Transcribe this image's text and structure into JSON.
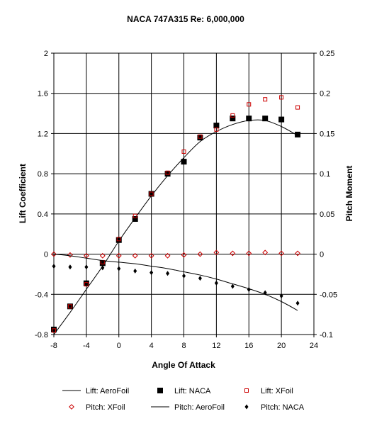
{
  "chart_data": {
    "type": "line",
    "title": "NACA 747A315 Re: 6,000,000",
    "xlabel": "Angle Of Attack",
    "ylabel": "Lift Coefficient",
    "y2label": "Pitch Moment",
    "xlim": [
      -8,
      24
    ],
    "ylim": [
      -0.8,
      2
    ],
    "y2lim": [
      -0.1,
      0.25
    ],
    "xticks": [
      "-8",
      "-4",
      "0",
      "4",
      "8",
      "12",
      "16",
      "20",
      "24"
    ],
    "yticks": [
      "-0.8",
      "-0.4",
      "0",
      "0.4",
      "0.8",
      "1.2",
      "1.6",
      "2"
    ],
    "y2ticks": [
      "-0.1",
      "-0.05",
      "0",
      "0.05",
      "0.1",
      "0.15",
      "0.2",
      "0.25"
    ],
    "grid": true,
    "legend_position": "bottom",
    "series": [
      {
        "name": "Lift: AeroFoil",
        "axis": "left",
        "style": "line",
        "color": "#000000",
        "x": [
          -8,
          -6,
          -4,
          -2,
          0,
          2,
          4,
          6,
          8,
          10,
          12,
          14,
          16,
          18,
          20,
          22
        ],
        "y": [
          -0.8,
          -0.58,
          -0.35,
          -0.12,
          0.13,
          0.36,
          0.58,
          0.78,
          0.96,
          1.12,
          1.22,
          1.29,
          1.33,
          1.33,
          1.27,
          1.18
        ]
      },
      {
        "name": "Lift: NACA",
        "axis": "left",
        "style": "filled-square",
        "color": "#000000",
        "x": [
          -8,
          -6,
          -4,
          -2,
          0,
          2,
          4,
          6,
          8,
          10,
          12,
          14,
          16,
          18,
          20,
          22
        ],
        "y": [
          -0.75,
          -0.52,
          -0.29,
          -0.09,
          0.14,
          0.35,
          0.6,
          0.8,
          0.92,
          1.16,
          1.28,
          1.35,
          1.35,
          1.35,
          1.34,
          1.19
        ]
      },
      {
        "name": "Lift: XFoil",
        "axis": "left",
        "style": "open-square",
        "color": "#cc0000",
        "x": [
          -8,
          -6,
          -4,
          -2,
          0,
          2,
          4,
          6,
          8,
          10,
          12,
          14,
          16,
          18,
          20,
          22
        ],
        "y": [
          -0.76,
          -0.52,
          -0.3,
          -0.08,
          0.15,
          0.38,
          0.6,
          0.81,
          1.02,
          1.17,
          1.24,
          1.38,
          1.49,
          1.54,
          1.56,
          1.46
        ]
      },
      {
        "name": "Pitch: XFoil",
        "axis": "right",
        "style": "open-diamond",
        "color": "#cc0000",
        "x": [
          -8,
          -6,
          -4,
          -2,
          0,
          2,
          4,
          6,
          8,
          10,
          12,
          14,
          16,
          18,
          20,
          22
        ],
        "y": [
          0.0,
          -0.001,
          -0.002,
          -0.002,
          -0.002,
          -0.002,
          -0.002,
          -0.002,
          -0.001,
          0.0,
          0.002,
          0.001,
          0.001,
          0.002,
          0.001,
          0.001
        ]
      },
      {
        "name": "Pitch: AeroFoil",
        "axis": "right",
        "style": "line",
        "color": "#000000",
        "x": [
          -8,
          -6,
          -4,
          -2,
          0,
          2,
          4,
          6,
          8,
          10,
          12,
          14,
          16,
          18,
          20,
          22
        ],
        "y": [
          0.0,
          -0.002,
          -0.005,
          -0.008,
          -0.01,
          -0.012,
          -0.015,
          -0.018,
          -0.022,
          -0.026,
          -0.031,
          -0.037,
          -0.043,
          -0.05,
          -0.059,
          -0.07
        ]
      },
      {
        "name": "Pitch: NACA",
        "axis": "right",
        "style": "filled-diamond",
        "color": "#000000",
        "x": [
          -8,
          -6,
          -4,
          -2,
          0,
          2,
          4,
          6,
          8,
          10,
          12,
          14,
          16,
          18,
          20,
          22
        ],
        "y": [
          -0.015,
          -0.016,
          -0.016,
          -0.017,
          -0.018,
          -0.021,
          -0.023,
          -0.024,
          -0.027,
          -0.03,
          -0.036,
          -0.04,
          -0.044,
          -0.048,
          -0.052,
          -0.061
        ]
      }
    ]
  }
}
